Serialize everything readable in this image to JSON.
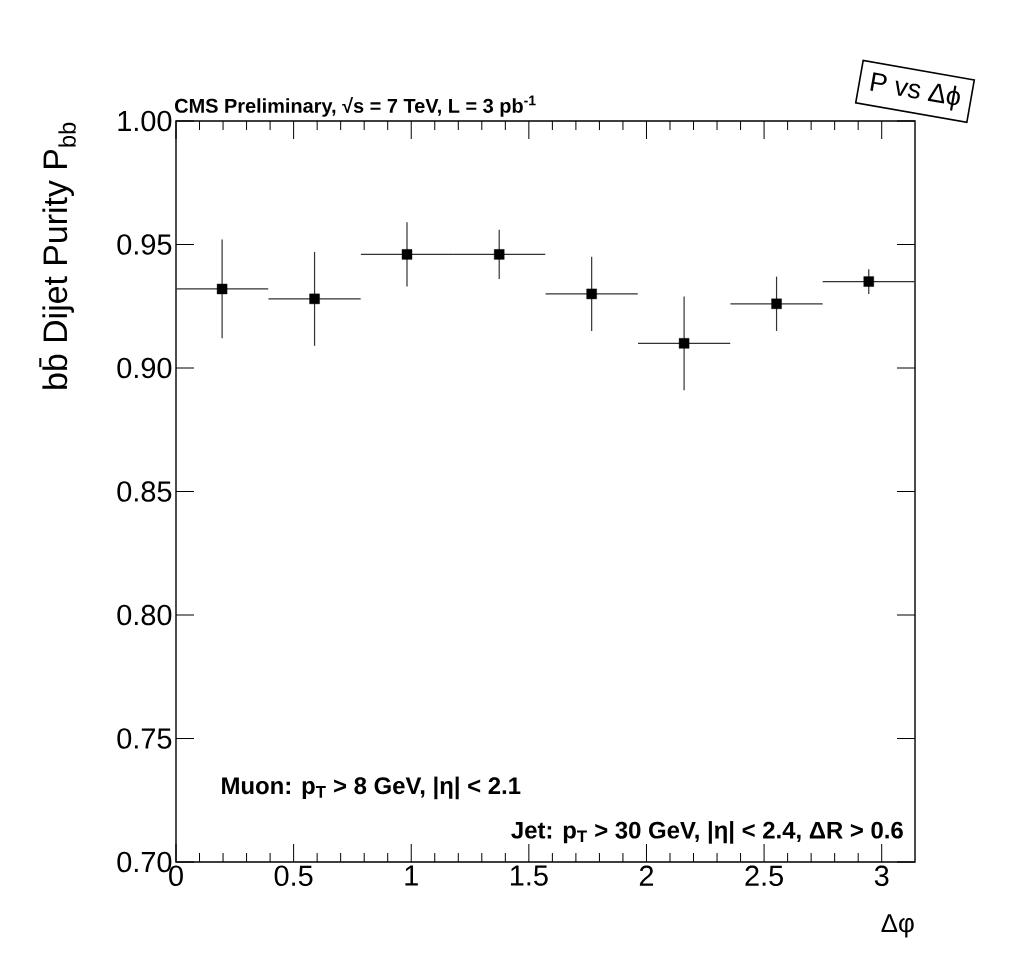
{
  "chart_data": {
    "type": "scatter",
    "title": "CMS Preliminary, √s = 7 TeV, L = 3 pb$^{-1}$",
    "xlabel": "Δφ",
    "ylabel": "bb̄ Dijet Purity P$_{bb}$",
    "annotations": [
      "Muon: p$_{T}$ > 8 GeV, |η| < 2.1",
      "Jet: p$_{T}$ > 30 GeV, |η| < 2.4, ΔR > 0.6",
      "P vs Δϕ"
    ],
    "x": [
      0.196,
      0.589,
      0.982,
      1.374,
      1.767,
      2.16,
      2.553,
      2.945
    ],
    "values": [
      0.932,
      0.928,
      0.946,
      0.946,
      0.93,
      0.91,
      0.926,
      0.935
    ],
    "errors": [
      0.02,
      0.019,
      0.013,
      0.01,
      0.015,
      0.019,
      0.011,
      0.005
    ],
    "xerrors": [
      0.196,
      0.196,
      0.196,
      0.196,
      0.196,
      0.196,
      0.196,
      0.196
    ],
    "color": "#000000",
    "marker": "square",
    "xlim": [
      0,
      3.1416
    ],
    "ylim": [
      0.7,
      1.0
    ],
    "xticks": [
      0,
      0.5,
      1,
      1.5,
      2,
      2.5,
      3
    ],
    "yticks": [
      {
        "value": 0.7,
        "label": "0.70"
      },
      {
        "value": 0.75,
        "label": "0.75"
      },
      {
        "value": 0.8,
        "label": "0.80"
      },
      {
        "value": 0.85,
        "label": "0.85"
      },
      {
        "value": 0.9,
        "label": "0.90"
      },
      {
        "value": 0.95,
        "label": "0.95"
      },
      {
        "value": 1.0,
        "label": "1.00"
      }
    ]
  }
}
